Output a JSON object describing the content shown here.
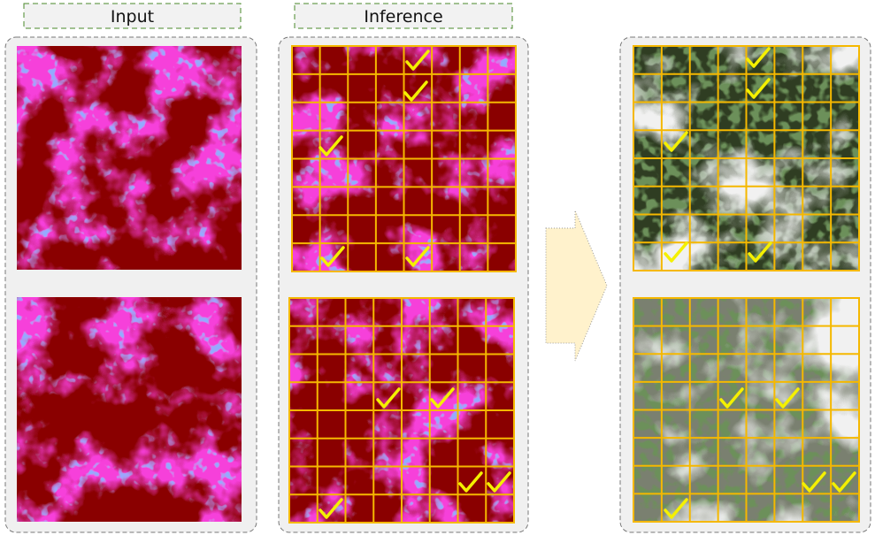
{
  "labels": {
    "input": "Input",
    "inference": "Inference"
  }
}
